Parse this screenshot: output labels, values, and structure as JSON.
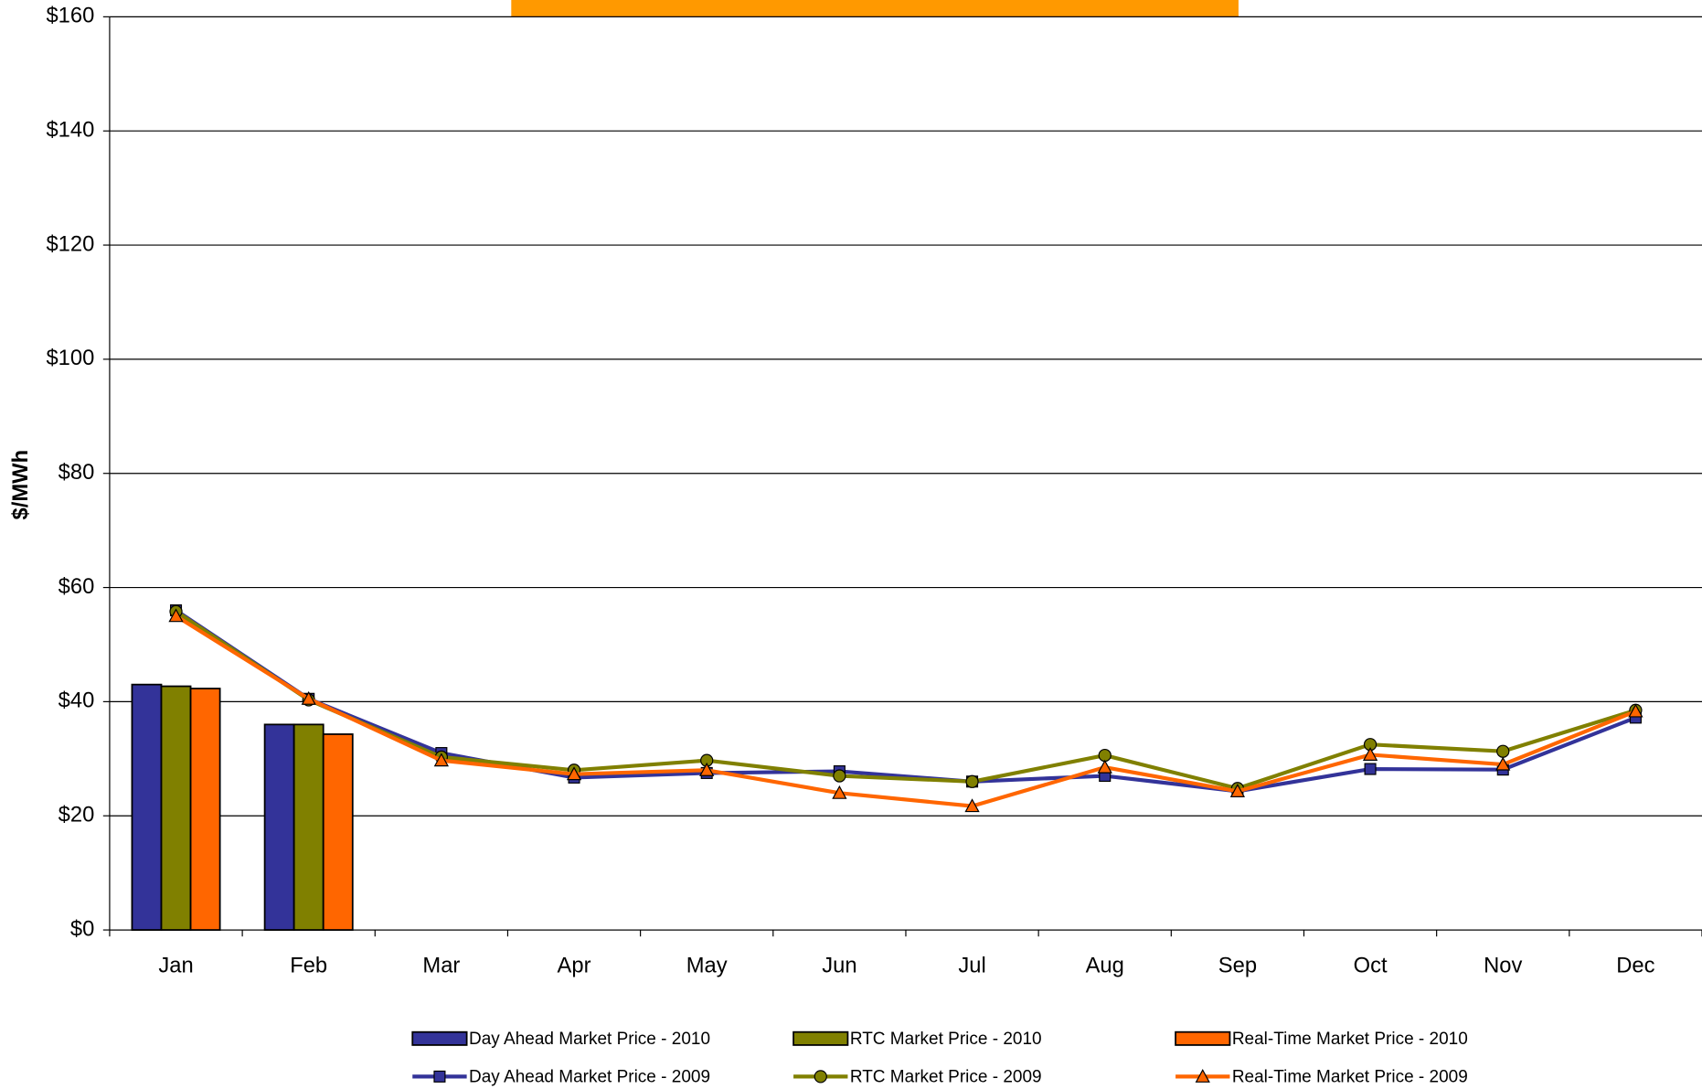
{
  "chart_data": {
    "type": "bar",
    "y_label": "$/MWh",
    "categories": [
      "Jan",
      "Feb",
      "Mar",
      "Apr",
      "May",
      "Jun",
      "Jul",
      "Aug",
      "Sep",
      "Oct",
      "Nov",
      "Dec"
    ],
    "series": [
      {
        "name": "Day Ahead Market Price - 2010",
        "type": "bar",
        "color": "#333399",
        "values": [
          43,
          36,
          null,
          null,
          null,
          null,
          null,
          null,
          null,
          null,
          null,
          null
        ]
      },
      {
        "name": "RTC Market Price - 2010",
        "type": "bar",
        "color": "#808000",
        "values": [
          42.7,
          36,
          null,
          null,
          null,
          null,
          null,
          null,
          null,
          null,
          null,
          null
        ]
      },
      {
        "name": "Real-Time Market Price - 2010",
        "type": "bar",
        "color": "#ff6600",
        "values": [
          42.3,
          34.3,
          null,
          null,
          null,
          null,
          null,
          null,
          null,
          null,
          null,
          null
        ]
      },
      {
        "name": "Day Ahead Market Price - 2009",
        "type": "line",
        "marker": "square",
        "color": "#333399",
        "values": [
          56,
          40.5,
          31,
          26.7,
          27.5,
          27.8,
          26,
          27,
          24.3,
          28.2,
          28.1,
          37.2
        ]
      },
      {
        "name": "RTC Market Price - 2009",
        "type": "line",
        "marker": "circle",
        "color": "#808000",
        "values": [
          55.8,
          40.3,
          30.3,
          28,
          29.7,
          27,
          26,
          30.6,
          24.8,
          32.5,
          31.3,
          38.5
        ]
      },
      {
        "name": "Real-Time Market Price - 2009",
        "type": "line",
        "marker": "triangle",
        "color": "#ff6600",
        "values": [
          55,
          40.5,
          29.7,
          27.3,
          28,
          24,
          21.7,
          28.5,
          24.3,
          30.7,
          29,
          38.3
        ]
      }
    ],
    "ylim": [
      0,
      160
    ],
    "yticks": [
      {
        "value": 0,
        "label": "$0"
      },
      {
        "value": 20,
        "label": "$20"
      },
      {
        "value": 40,
        "label": "$40"
      },
      {
        "value": 60,
        "label": "$60"
      },
      {
        "value": 80,
        "label": "$80"
      },
      {
        "value": 100,
        "label": "$100"
      },
      {
        "value": 120,
        "label": "$120"
      },
      {
        "value": 140,
        "label": "$140"
      },
      {
        "value": 160,
        "label": "$160"
      }
    ],
    "grid": true
  }
}
